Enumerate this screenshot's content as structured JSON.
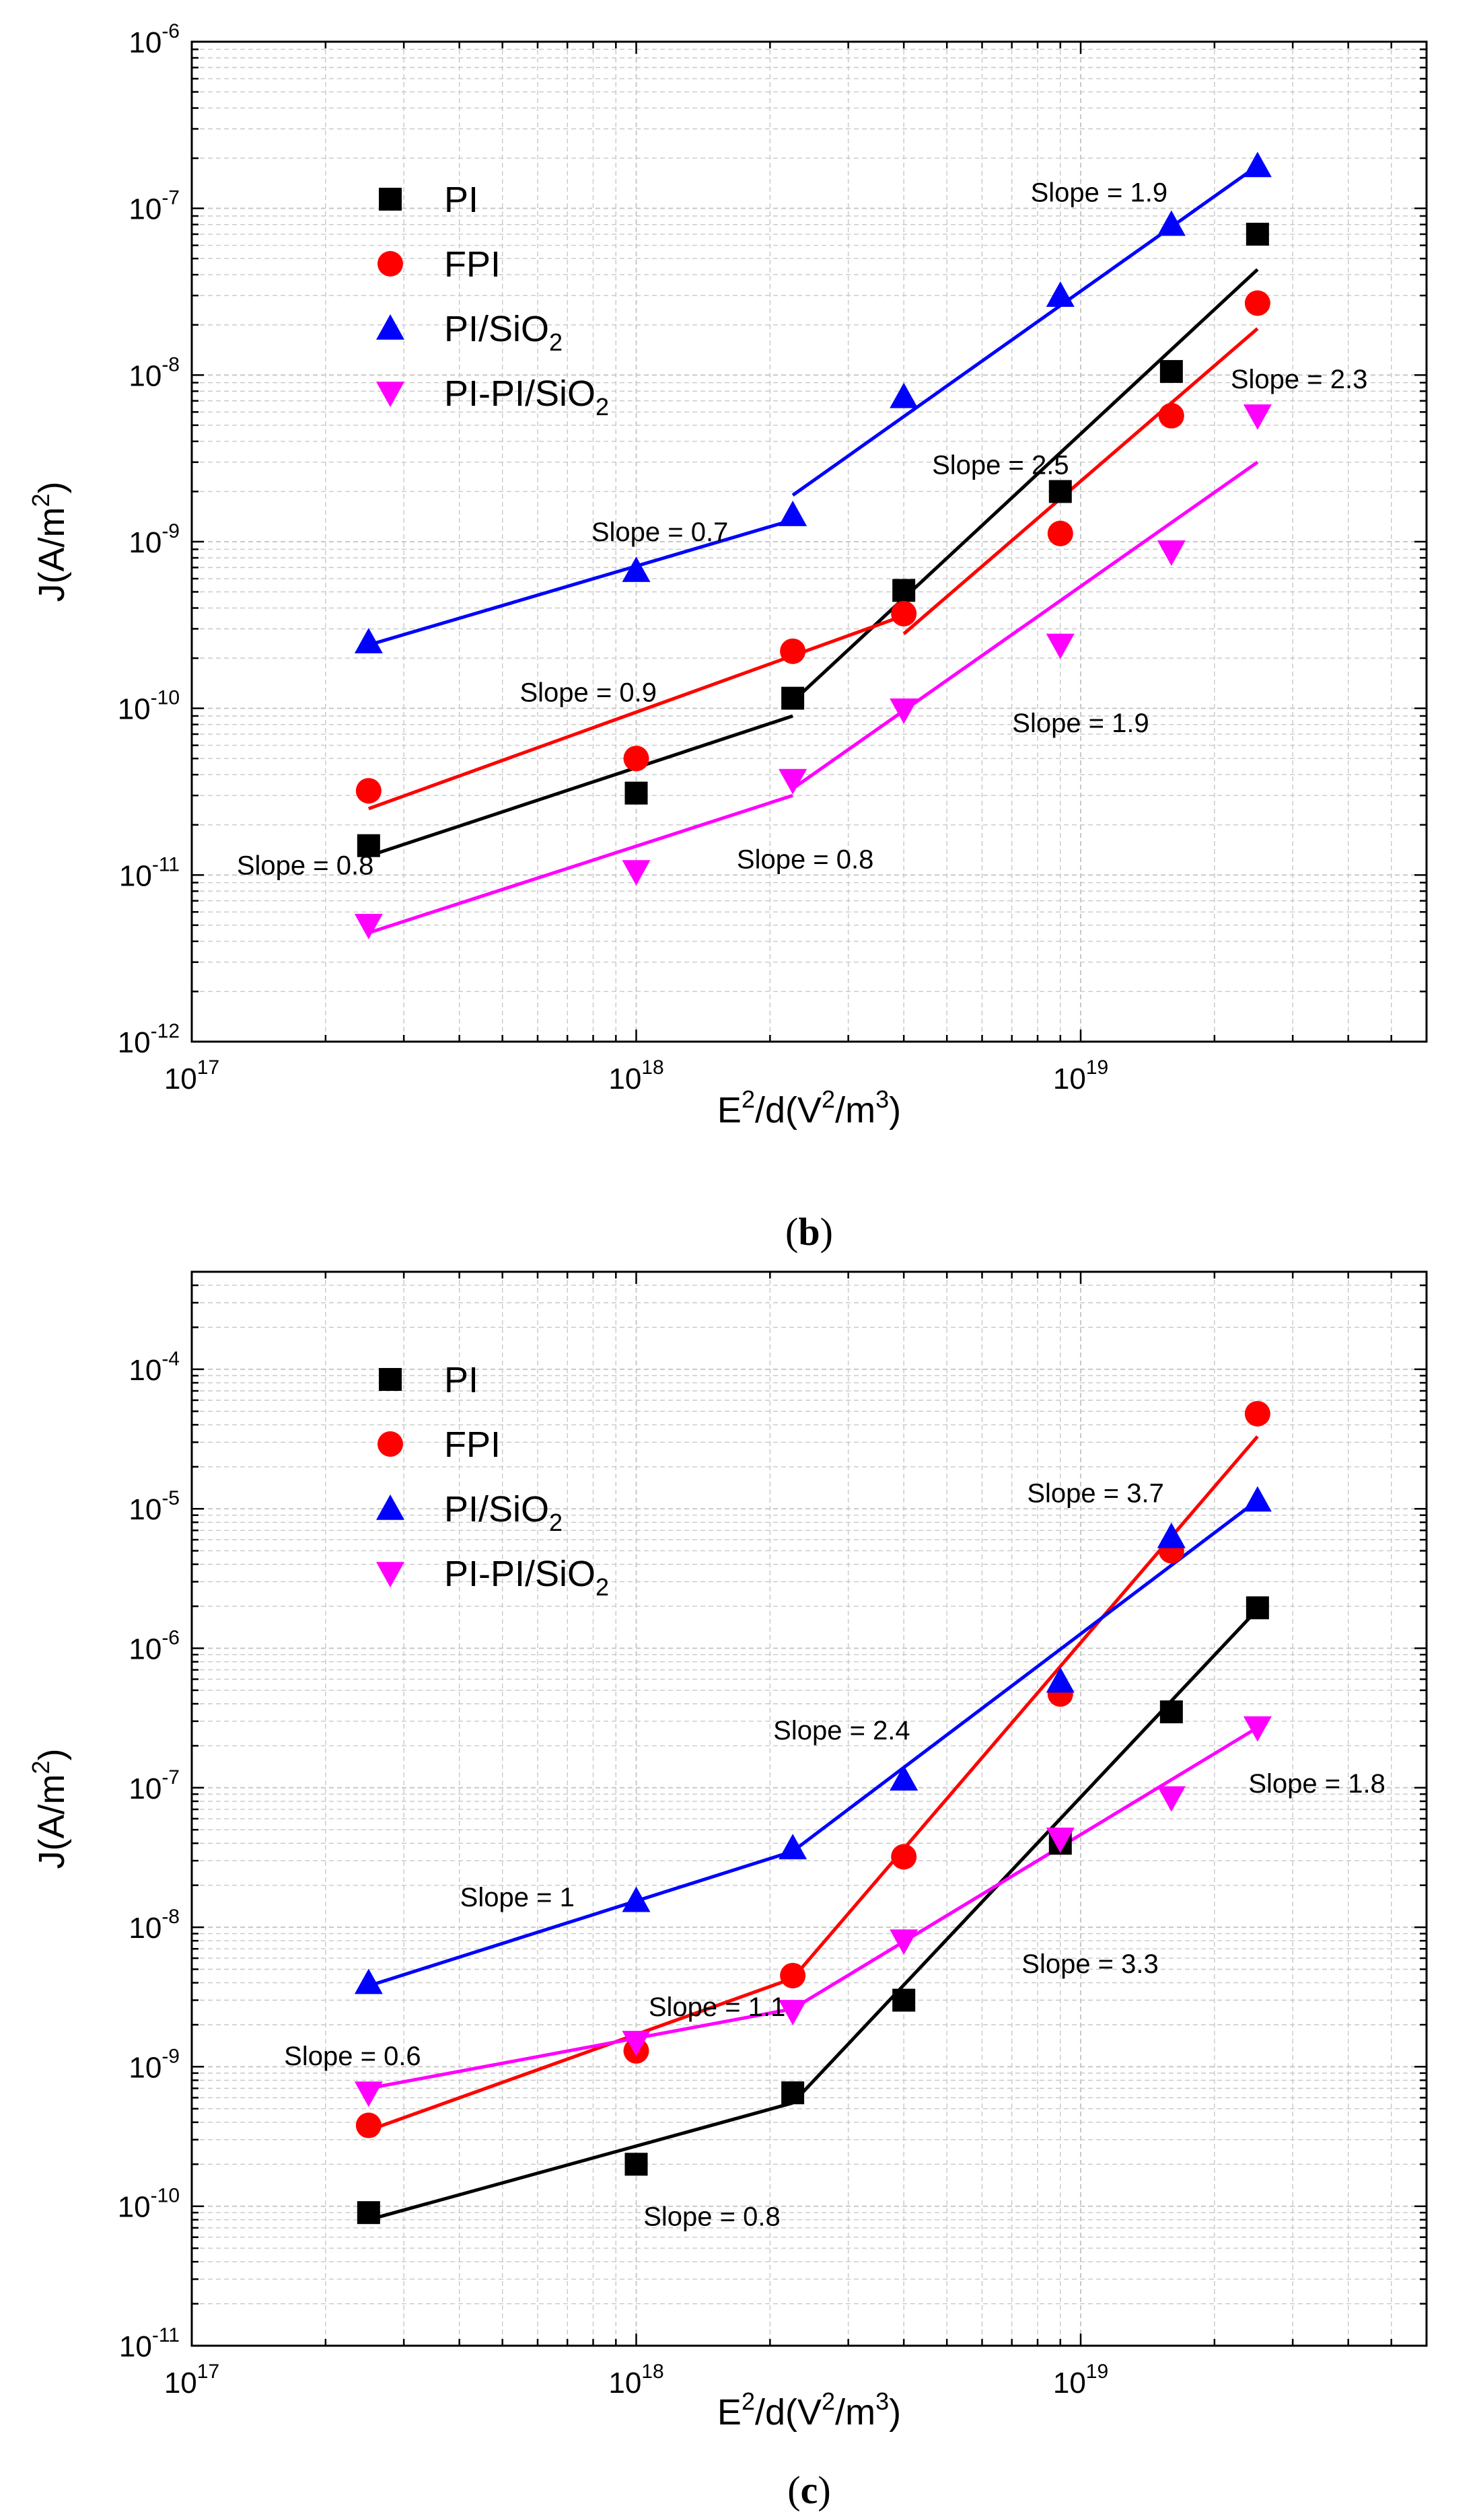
{
  "chart_data": [
    {
      "type": "scatter",
      "panel_label": "b",
      "xlabel": "E2/d(V2/m3)",
      "ylabel": "J(A/m2)",
      "x_scale": "log",
      "y_scale": "log",
      "xlim": [
        1e+17,
        6e+19
      ],
      "ylim": [
        1e-12,
        1e-06
      ],
      "x_ticks": [
        {
          "base": "10",
          "exp": "17"
        },
        {
          "base": "10",
          "exp": "18"
        },
        {
          "base": "10",
          "exp": "19"
        }
      ],
      "y_ticks": [
        {
          "base": "10",
          "exp": "-12"
        },
        {
          "base": "10",
          "exp": "-11"
        },
        {
          "base": "10",
          "exp": "-10"
        },
        {
          "base": "10",
          "exp": "-9"
        },
        {
          "base": "10",
          "exp": "-8"
        },
        {
          "base": "10",
          "exp": "-7"
        },
        {
          "base": "10",
          "exp": "-6"
        }
      ],
      "grid": true,
      "legend_position": "top-left",
      "series": [
        {
          "name": "PI",
          "legend_main": "PI",
          "legend_sub": "",
          "legend_tail": "",
          "color": "#000000",
          "marker": "square",
          "x": [
            2.5e+17,
            1e+18,
            2.25e+18,
            4e+18,
            9e+18,
            1.6e+19,
            2.5e+19
          ],
          "y": [
            1.5e-11,
            3.1e-11,
            1.15e-10,
            5.1e-10,
            2e-09,
            1.05e-08,
            7e-08
          ],
          "fits": [
            [
              [
                2.5e+17,
                1.3e-11
              ],
              [
                2.25e+18,
                9e-11
              ]
            ],
            [
              [
                2.25e+18,
                1.1e-10
              ],
              [
                2.5e+19,
                4.3e-08
              ]
            ]
          ]
        },
        {
          "name": "FPI",
          "legend_main": "FPI",
          "legend_sub": "",
          "legend_tail": "",
          "color": "#ff0000",
          "marker": "circle",
          "x": [
            2.5e+17,
            1e+18,
            2.25e+18,
            4e+18,
            9e+18,
            1.6e+19,
            2.5e+19
          ],
          "y": [
            3.2e-11,
            5e-11,
            2.2e-10,
            3.7e-10,
            1.12e-09,
            5.7e-09,
            2.7e-08
          ],
          "fits": [
            [
              [
                2.5e+17,
                2.5e-11
              ],
              [
                4e+18,
                3.6e-10
              ]
            ],
            [
              [
                4e+18,
                2.8e-10
              ],
              [
                2.5e+19,
                1.9e-08
              ]
            ]
          ]
        },
        {
          "name": "PI/SiO2",
          "legend_main": "PI/SiO",
          "legend_sub": "2",
          "legend_tail": "",
          "color": "#0000ff",
          "marker": "triangle-up",
          "x": [
            2.5e+17,
            1e+18,
            2.25e+18,
            4e+18,
            9e+18,
            1.6e+19,
            2.5e+19
          ],
          "y": [
            2.5e-10,
            6.7e-10,
            1.45e-09,
            7.4e-09,
            3e-08,
            8e-08,
            1.8e-07
          ],
          "fits": [
            [
              [
                2.5e+17,
                2.4e-10
              ],
              [
                2.25e+18,
                1.35e-09
              ]
            ],
            [
              [
                2.25e+18,
                1.9e-09
              ],
              [
                2.5e+19,
                1.8e-07
              ]
            ]
          ]
        },
        {
          "name": "PI-PI/SiO2",
          "legend_main": "PI-PI/SiO",
          "legend_sub": "2",
          "legend_tail": "",
          "color": "#ff00ff",
          "marker": "triangle-down",
          "x": [
            2.5e+17,
            1e+18,
            2.25e+18,
            4e+18,
            9e+18,
            1.6e+19,
            2.5e+19
          ],
          "y": [
            5e-12,
            1.05e-11,
            3.7e-11,
            9.8e-11,
            2.4e-10,
            8.7e-10,
            5.7e-09
          ],
          "fits": [
            [
              [
                2.5e+17,
                4.5e-12
              ],
              [
                2.25e+18,
                3e-11
              ]
            ],
            [
              [
                2.25e+18,
                3.3e-11
              ],
              [
                2.5e+19,
                3e-09
              ]
            ]
          ]
        }
      ],
      "annotations": [
        {
          "text": "Slope = 1.9",
          "x": 1.1e+19,
          "y": 1.25e-07
        },
        {
          "text": "Slope = 2.3",
          "x": 3.1e+19,
          "y": 9.5e-09
        },
        {
          "text": "Slope = 2.5",
          "x": 6.6e+18,
          "y": 2.9e-09
        },
        {
          "text": "Slope = 0.7",
          "x": 1.13e+18,
          "y": 1.15e-09
        },
        {
          "text": "Slope = 0.9",
          "x": 7.8e+17,
          "y": 1.25e-10
        },
        {
          "text": "Slope = 1.9",
          "x": 1e+19,
          "y": 8.2e-11
        },
        {
          "text": "Slope = 0.8",
          "x": 1.8e+17,
          "y": 1.15e-11
        },
        {
          "text": "Slope = 0.8",
          "x": 2.4e+18,
          "y": 1.25e-11
        }
      ]
    },
    {
      "type": "scatter",
      "panel_label": "c",
      "xlabel": "E2/d(V2/m3)",
      "ylabel": "J(A/m2)",
      "x_scale": "log",
      "y_scale": "log",
      "xlim": [
        1e+17,
        6e+19
      ],
      "ylim": [
        1e-11,
        0.0005
      ],
      "x_ticks": [
        {
          "base": "10",
          "exp": "17"
        },
        {
          "base": "10",
          "exp": "18"
        },
        {
          "base": "10",
          "exp": "19"
        }
      ],
      "y_ticks": [
        {
          "base": "10",
          "exp": "-11"
        },
        {
          "base": "10",
          "exp": "-10"
        },
        {
          "base": "10",
          "exp": "-9"
        },
        {
          "base": "10",
          "exp": "-8"
        },
        {
          "base": "10",
          "exp": "-7"
        },
        {
          "base": "10",
          "exp": "-6"
        },
        {
          "base": "10",
          "exp": "-5"
        },
        {
          "base": "10",
          "exp": "-4"
        }
      ],
      "grid": true,
      "legend_position": "top-left",
      "series": [
        {
          "name": "PI",
          "legend_main": "PI",
          "legend_sub": "",
          "legend_tail": "",
          "color": "#000000",
          "marker": "square",
          "x": [
            2.5e+17,
            1e+18,
            2.25e+18,
            4e+18,
            9e+18,
            1.6e+19,
            2.5e+19
          ],
          "y": [
            9e-11,
            2e-10,
            6.5e-10,
            3e-09,
            4e-08,
            3.5e-07,
            1.95e-06
          ],
          "fits": [
            [
              [
                2.5e+17,
                8e-11
              ],
              [
                2.25e+18,
                5.5e-10
              ]
            ],
            [
              [
                2.25e+18,
                5.5e-10
              ],
              [
                2.5e+19,
                1.9e-06
              ]
            ]
          ]
        },
        {
          "name": "FPI",
          "legend_main": "FPI",
          "legend_sub": "",
          "legend_tail": "",
          "color": "#ff0000",
          "marker": "circle",
          "x": [
            2.5e+17,
            1e+18,
            2.25e+18,
            4e+18,
            9e+18,
            1.6e+19,
            2.5e+19
          ],
          "y": [
            3.8e-10,
            1.3e-09,
            4.5e-09,
            3.2e-08,
            4.7e-07,
            5e-06,
            4.8e-05
          ],
          "fits": [
            [
              [
                2.5e+17,
                3.5e-10
              ],
              [
                2.25e+18,
                4.3e-09
              ]
            ],
            [
              [
                2.25e+18,
                4.3e-09
              ],
              [
                2.5e+19,
                3.3e-05
              ]
            ]
          ]
        },
        {
          "name": "PI/SiO2",
          "legend_main": "PI/SiO",
          "legend_sub": "2",
          "legend_tail": "",
          "color": "#0000ff",
          "marker": "triangle-up",
          "x": [
            2.5e+17,
            1e+18,
            2.25e+18,
            4e+18,
            9e+18,
            1.6e+19,
            2.5e+19
          ],
          "y": [
            4e-09,
            1.55e-08,
            3.7e-08,
            1.15e-07,
            5.8e-07,
            6.3e-06,
            1.15e-05
          ],
          "fits": [
            [
              [
                2.5e+17,
                3.8e-09
              ],
              [
                2.25e+18,
                3.5e-08
              ]
            ],
            [
              [
                2.25e+18,
                3.5e-08
              ],
              [
                2.5e+19,
                1.15e-05
              ]
            ]
          ]
        },
        {
          "name": "PI-PI/SiO2",
          "legend_main": "PI-PI/SiO",
          "legend_sub": "2",
          "legend_tail": "",
          "color": "#ff00ff",
          "marker": "triangle-down",
          "x": [
            2.5e+17,
            1e+18,
            2.25e+18,
            4e+18,
            9e+18,
            1.6e+19,
            2.5e+19
          ],
          "y": [
            6.5e-10,
            1.5e-09,
            2.5e-09,
            8e-09,
            4.3e-08,
            8.5e-08,
            2.7e-07
          ],
          "fits": [
            [
              [
                2.5e+17,
                7e-10
              ],
              [
                2.25e+18,
                2.6e-09
              ]
            ],
            [
              [
                2.25e+18,
                2.6e-09
              ],
              [
                2.5e+19,
                2.7e-07
              ]
            ]
          ]
        }
      ],
      "annotations": [
        {
          "text": "Slope = 3.7",
          "x": 1.08e+19,
          "y": 1.3e-05
        },
        {
          "text": "Slope = 2.4",
          "x": 2.9e+18,
          "y": 2.6e-07
        },
        {
          "text": "Slope = 1.8",
          "x": 3.4e+19,
          "y": 1.08e-07
        },
        {
          "text": "Slope = 1",
          "x": 5.4e+17,
          "y": 1.65e-08
        },
        {
          "text": "Slope = 1.1",
          "x": 1.52e+18,
          "y": 2.7e-09
        },
        {
          "text": "Slope = 3.3",
          "x": 1.05e+19,
          "y": 5.5e-09
        },
        {
          "text": "Slope = 0.6",
          "x": 2.3e+17,
          "y": 1.2e-09
        },
        {
          "text": "Slope = 0.8",
          "x": 1.48e+18,
          "y": 8.5e-11
        }
      ]
    }
  ]
}
